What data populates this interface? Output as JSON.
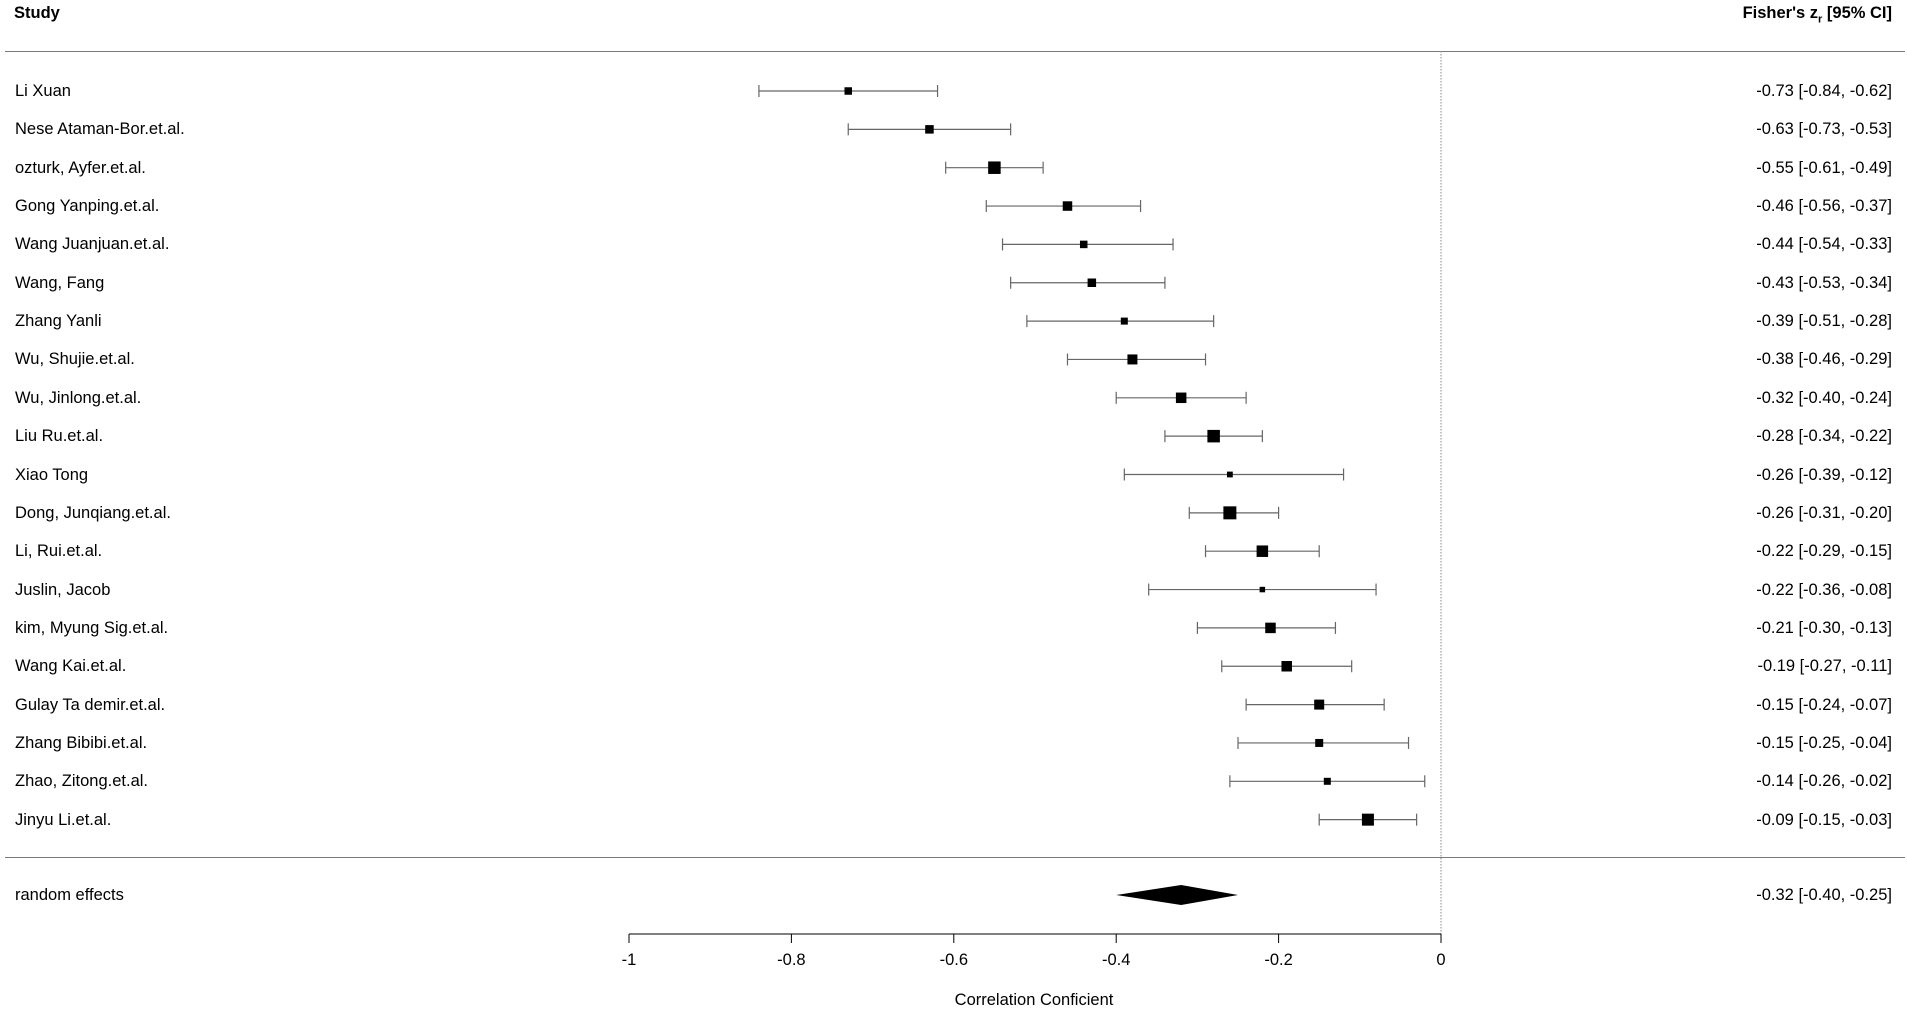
{
  "header": {
    "study_label": "Study",
    "effect_label_prefix": "Fisher's z",
    "effect_label_sub": "r",
    "effect_label_suffix": " [95% CI]"
  },
  "chart_data": {
    "type": "forest",
    "xlabel": "Correlation Conficient",
    "xlim": [
      -1,
      0
    ],
    "xticks": [
      -1,
      -0.8,
      -0.6,
      -0.4,
      -0.2,
      0
    ],
    "xtick_labels": [
      "-1",
      "-0.8",
      "-0.6",
      "-0.4",
      "-0.2",
      "0"
    ],
    "reference_line": 0,
    "studies": [
      {
        "name": "Li Xuan",
        "estimate": -0.73,
        "lower": -0.84,
        "upper": -0.62,
        "ci_text": "-0.73 [-0.84, -0.62]",
        "weight": 0.45
      },
      {
        "name": "Nese Ataman-Bor.et.al.",
        "estimate": -0.63,
        "lower": -0.73,
        "upper": -0.53,
        "ci_text": "-0.63 [-0.73, -0.53]",
        "weight": 0.55
      },
      {
        "name": "ozturk, Ayfer.et.al.",
        "estimate": -0.55,
        "lower": -0.61,
        "upper": -0.49,
        "ci_text": "-0.55 [-0.61, -0.49]",
        "weight": 0.95
      },
      {
        "name": "Gong Yanping.et.al.",
        "estimate": -0.46,
        "lower": -0.56,
        "upper": -0.37,
        "ci_text": "-0.46 [-0.56, -0.37]",
        "weight": 0.65
      },
      {
        "name": "Wang Juanjuan.et.al.",
        "estimate": -0.44,
        "lower": -0.54,
        "upper": -0.33,
        "ci_text": "-0.44 [-0.54, -0.33]",
        "weight": 0.45
      },
      {
        "name": "Wang, Fang",
        "estimate": -0.43,
        "lower": -0.53,
        "upper": -0.34,
        "ci_text": "-0.43 [-0.53, -0.34]",
        "weight": 0.55
      },
      {
        "name": "Zhang Yanli",
        "estimate": -0.39,
        "lower": -0.51,
        "upper": -0.28,
        "ci_text": "-0.39 [-0.51, -0.28]",
        "weight": 0.4
      },
      {
        "name": "Wu, Shujie.et.al.",
        "estimate": -0.38,
        "lower": -0.46,
        "upper": -0.29,
        "ci_text": "-0.38 [-0.46, -0.29]",
        "weight": 0.7
      },
      {
        "name": "Wu, Jinlong.et.al.",
        "estimate": -0.32,
        "lower": -0.4,
        "upper": -0.24,
        "ci_text": "-0.32 [-0.40, -0.24]",
        "weight": 0.75
      },
      {
        "name": "Liu Ru.et.al.",
        "estimate": -0.28,
        "lower": -0.34,
        "upper": -0.22,
        "ci_text": "-0.28 [-0.34, -0.22]",
        "weight": 0.95
      },
      {
        "name": "Xiao Tong",
        "estimate": -0.26,
        "lower": -0.39,
        "upper": -0.12,
        "ci_text": "-0.26 [-0.39, -0.12]",
        "weight": 0.28
      },
      {
        "name": "Dong, Junqiang.et.al.",
        "estimate": -0.26,
        "lower": -0.31,
        "upper": -0.2,
        "ci_text": "-0.26 [-0.31, -0.20]",
        "weight": 1.0
      },
      {
        "name": "Li, Rui.et.al.",
        "estimate": -0.22,
        "lower": -0.29,
        "upper": -0.15,
        "ci_text": "-0.22 [-0.29, -0.15]",
        "weight": 0.85
      },
      {
        "name": "Juslin, Jacob",
        "estimate": -0.22,
        "lower": -0.36,
        "upper": -0.08,
        "ci_text": "-0.22 [-0.36, -0.08]",
        "weight": 0.25
      },
      {
        "name": "kim, Myung Sig.et.al.",
        "estimate": -0.21,
        "lower": -0.3,
        "upper": -0.13,
        "ci_text": "-0.21 [-0.30, -0.13]",
        "weight": 0.75
      },
      {
        "name": "Wang Kai.et.al.",
        "estimate": -0.19,
        "lower": -0.27,
        "upper": -0.11,
        "ci_text": "-0.19 [-0.27, -0.11]",
        "weight": 0.75
      },
      {
        "name": "Gulay Ta demir.et.al.",
        "estimate": -0.15,
        "lower": -0.24,
        "upper": -0.07,
        "ci_text": "-0.15 [-0.24, -0.07]",
        "weight": 0.7
      },
      {
        "name": "Zhang Bibibi.et.al.",
        "estimate": -0.15,
        "lower": -0.25,
        "upper": -0.04,
        "ci_text": "-0.15 [-0.25, -0.04]",
        "weight": 0.5
      },
      {
        "name": "Zhao, Zitong.et.al.",
        "estimate": -0.14,
        "lower": -0.26,
        "upper": -0.02,
        "ci_text": "-0.14 [-0.26, -0.02]",
        "weight": 0.4
      },
      {
        "name": "Jinyu Li.et.al.",
        "estimate": -0.09,
        "lower": -0.15,
        "upper": -0.03,
        "ci_text": "-0.09 [-0.15, -0.03]",
        "weight": 0.9
      }
    ],
    "summary": {
      "name": "random effects",
      "estimate": -0.32,
      "lower": -0.4,
      "upper": -0.25,
      "ci_text": "-0.32 [-0.40, -0.25]"
    }
  }
}
